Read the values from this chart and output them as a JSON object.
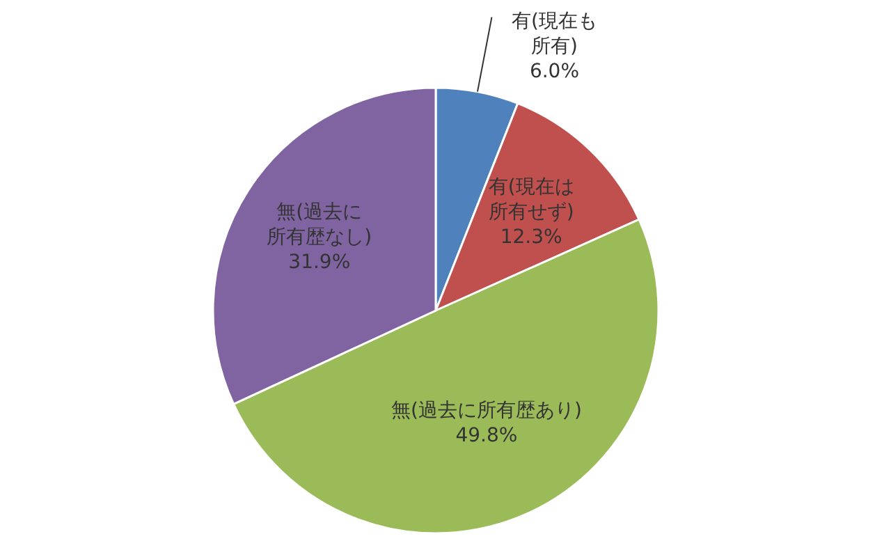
{
  "chart_data": {
    "type": "pie",
    "categories": [
      "有(現在も所有)",
      "有(現在は所有せず)",
      "無(過去に所有歴あり)",
      "無(過去に所有歴なし)"
    ],
    "values": [
      6.0,
      12.3,
      49.8,
      31.9
    ],
    "colors": [
      "#4f81bd",
      "#c0504d",
      "#9bbb59",
      "#8064a2"
    ],
    "value_labels": [
      "6.0%",
      "12.3%",
      "49.8%",
      "31.9%"
    ],
    "legend": false
  }
}
